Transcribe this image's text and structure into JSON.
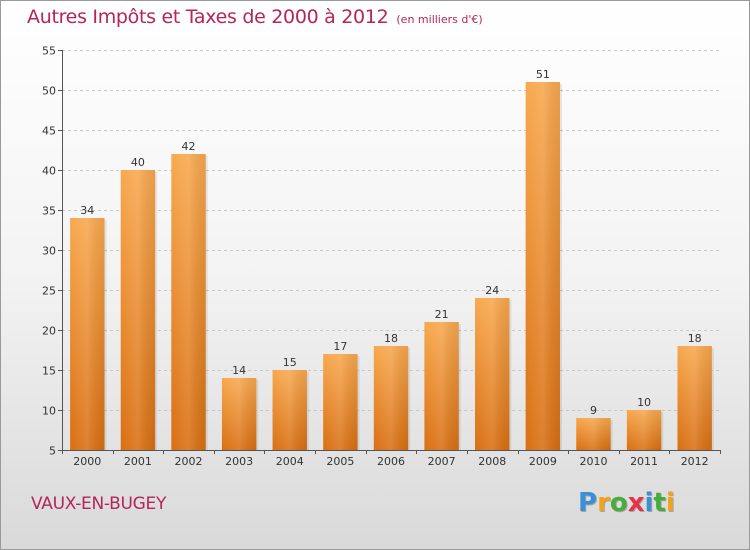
{
  "chart_data": {
    "type": "bar",
    "title": "Autres Impôts et Taxes de 2000 à 2012",
    "subtitle": "(en milliers d'€)",
    "categories": [
      "2000",
      "2001",
      "2002",
      "2003",
      "2004",
      "2005",
      "2006",
      "2007",
      "2008",
      "2009",
      "2010",
      "2011",
      "2012"
    ],
    "values": [
      34,
      40,
      42,
      14,
      15,
      17,
      18,
      21,
      24,
      51,
      9,
      10,
      18
    ],
    "ylim": [
      5,
      55
    ],
    "yticks": [
      5,
      10,
      15,
      20,
      25,
      30,
      35,
      40,
      45,
      50,
      55
    ],
    "grid": true,
    "bar_color": "#f0882a"
  },
  "location": "VAUX-EN-BUGEY",
  "logo": {
    "letters": [
      "P",
      "r",
      "o",
      "x",
      "i",
      "t",
      "i"
    ],
    "colors": [
      "#3a8fd6",
      "#f2a21b",
      "#47ad3a",
      "#e8324a",
      "#3a8fd6",
      "#47ad3a",
      "#f2a21b"
    ]
  }
}
